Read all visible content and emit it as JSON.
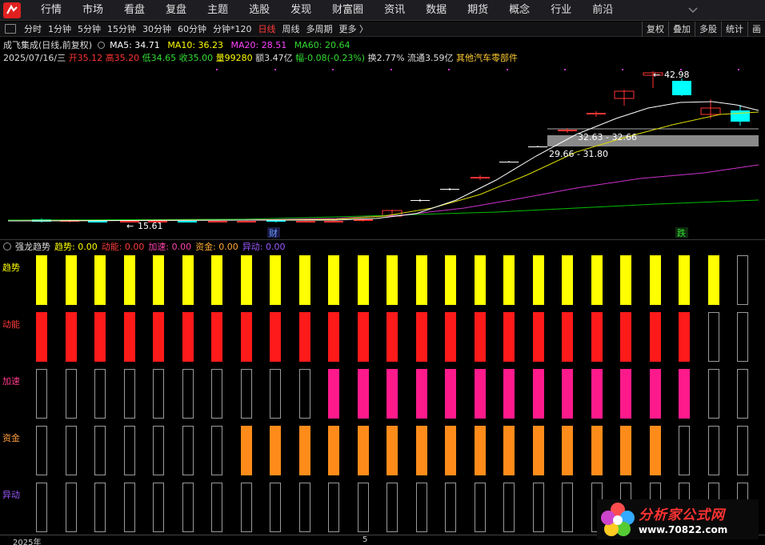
{
  "menu": {
    "items": [
      "行情",
      "市场",
      "看盘",
      "复盘",
      "主题",
      "选股",
      "发现",
      "财富圈",
      "资讯",
      "数据",
      "期货",
      "概念",
      "行业",
      "前沿"
    ]
  },
  "toolbar": {
    "periods": [
      "分时",
      "1分钟",
      "5分钟",
      "15分钟",
      "30分钟",
      "60分钟",
      "分钟*120",
      "日线",
      "周线",
      "多周期",
      "更多 〉"
    ],
    "active_period": "日线",
    "right_buttons": [
      "复权",
      "叠加",
      "多股",
      "统计",
      "画"
    ]
  },
  "stock": {
    "title": "成飞集成(日线,前复权)",
    "ma5_label": "MA5: 34.71",
    "ma10_label": "MA10: 36.23",
    "ma20_label": "MA20: 28.51",
    "ma60_label": "MA60: 20.64",
    "date": "2025/07/16/三",
    "open": "开35.12",
    "high": "高35.20",
    "low": "低34.65",
    "close": "收35.00",
    "volume": "量99280",
    "amount": "额3.47亿",
    "change": "幅-0.08(-0.23%)",
    "turnover": "换2.77%",
    "float_cap": "流通3.59亿",
    "sector": "其他汽车零部件"
  },
  "chart_annotations": {
    "high_price": "42.98",
    "range_upper": "32.63 - 32.66",
    "range_lower": "29.66 - 31.80",
    "low_price": "15.61",
    "marker_cai": "财",
    "marker_die": "跌"
  },
  "indicator": {
    "name": "强龙趋势",
    "qushi": "趋势: 0.00",
    "dongneng": "动能: 0.00",
    "jiasu": "加速: 0.00",
    "zijin": "资金: 0.00",
    "yidong": "异动: 0.00",
    "rows": [
      {
        "label": "趋势",
        "color": "#ffff00",
        "label_color": "#ffff00",
        "filled": [
          1,
          1,
          1,
          1,
          1,
          1,
          1,
          1,
          1,
          1,
          1,
          1,
          1,
          1,
          1,
          1,
          1,
          1,
          1,
          1,
          1,
          1,
          1,
          1,
          0
        ]
      },
      {
        "label": "动能",
        "color": "#ff1a1a",
        "label_color": "#ff3b3b",
        "filled": [
          1,
          1,
          1,
          1,
          1,
          1,
          1,
          1,
          1,
          1,
          1,
          1,
          1,
          1,
          1,
          1,
          1,
          1,
          1,
          1,
          1,
          1,
          1,
          0,
          0
        ]
      },
      {
        "label": "加速",
        "color": "#ff1a8c",
        "label_color": "#ff3b8c",
        "filled": [
          0,
          0,
          0,
          0,
          0,
          0,
          0,
          0,
          0,
          0,
          1,
          1,
          1,
          1,
          1,
          1,
          1,
          1,
          1,
          1,
          1,
          1,
          1,
          0,
          0
        ]
      },
      {
        "label": "资金",
        "color": "#ff8c1a",
        "label_color": "#ff9c3b",
        "filled": [
          0,
          0,
          0,
          0,
          0,
          0,
          0,
          1,
          1,
          1,
          1,
          1,
          1,
          1,
          1,
          1,
          1,
          1,
          1,
          1,
          1,
          1,
          0,
          0,
          0
        ]
      },
      {
        "label": "异动",
        "color": "#8a2be2",
        "label_color": "#9b59ff",
        "filled": [
          0,
          0,
          0,
          0,
          0,
          0,
          0,
          0,
          0,
          0,
          0,
          0,
          0,
          0,
          0,
          0,
          0,
          0,
          0,
          0,
          0,
          0,
          0,
          0,
          0
        ]
      }
    ]
  },
  "time_axis": {
    "year": "2025年",
    "month": "5"
  },
  "watermark": {
    "title": "分析家公式网",
    "url": "www.70822.com"
  },
  "colors": {
    "ma5": "#ffffff",
    "ma10": "#ffff00",
    "ma20": "#ff00ff",
    "ma60": "#00cc00",
    "up": "#ff3333",
    "down": "#00ffff"
  }
}
